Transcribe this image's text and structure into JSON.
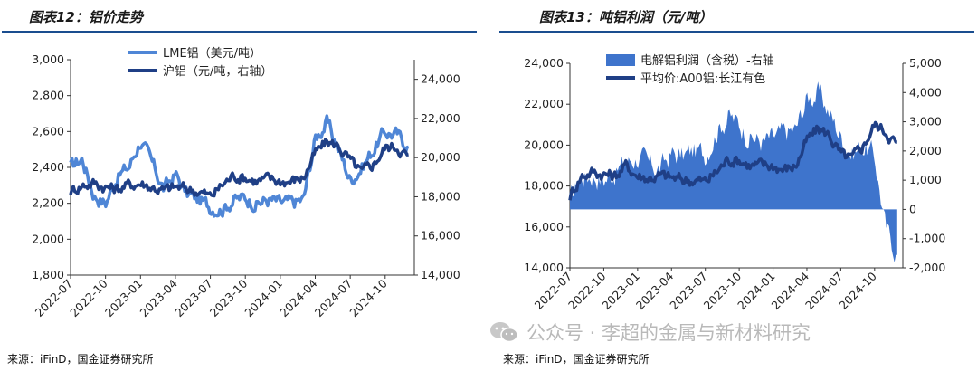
{
  "left_panel": {
    "title": "图表12：铝价走势",
    "source": "来源：iFinD，国金证券研究所"
  },
  "right_panel": {
    "title": "图表13：吨铝利润（元/吨）",
    "source": "来源：iFinD，国金证券研究所"
  },
  "watermark": {
    "text": "公众号 · 李超的金属与新材料研究",
    "logo_icon": "wechat-logo-icon"
  },
  "colors": {
    "light_blue": "#4f86d6",
    "dark_blue": "#1f3f86",
    "area_blue": "#3e74cc",
    "rule": "#1a4d8f"
  },
  "chart_data": [
    {
      "type": "line",
      "title": "铝价走势",
      "x_tick_labels": [
        "2022-07",
        "2022-10",
        "2023-01",
        "2023-04",
        "2023-07",
        "2023-10",
        "2024-01",
        "2024-04",
        "2024-07",
        "2024-10"
      ],
      "x_range": [
        "2022-07",
        "2024-12"
      ],
      "left_axis": {
        "range": [
          1800,
          3000
        ],
        "ticks": [
          1800,
          2000,
          2200,
          2400,
          2600,
          2800,
          3000
        ],
        "tick_labels": [
          "1,800",
          "2,000",
          "2,200",
          "2,400",
          "2,600",
          "2,800",
          "3,000"
        ]
      },
      "right_axis": {
        "range": [
          14000,
          25000
        ],
        "ticks": [
          14000,
          16000,
          18000,
          20000,
          22000,
          24000
        ],
        "tick_labels": [
          "14,000",
          "16,000",
          "18,000",
          "20,000",
          "22,000",
          "24,000"
        ]
      },
      "legend_position": "top-center",
      "series": [
        {
          "name": "LME铝（美元/吨）",
          "axis": "left",
          "points": [
            [
              "2022-07",
              2400
            ],
            [
              "2022-08",
              2450
            ],
            [
              "2022-09",
              2250
            ],
            [
              "2022-10",
              2200
            ],
            [
              "2022-11",
              2350
            ],
            [
              "2022-12",
              2400
            ],
            [
              "2023-01",
              2550
            ],
            [
              "2023-02",
              2420
            ],
            [
              "2023-03",
              2280
            ],
            [
              "2023-04",
              2360
            ],
            [
              "2023-05",
              2250
            ],
            [
              "2023-06",
              2220
            ],
            [
              "2023-07",
              2180
            ],
            [
              "2023-08",
              2170
            ],
            [
              "2023-09",
              2220
            ],
            [
              "2023-10",
              2230
            ],
            [
              "2023-11",
              2200
            ],
            [
              "2023-12",
              2220
            ],
            [
              "2024-01",
              2200
            ],
            [
              "2024-02",
              2200
            ],
            [
              "2024-03",
              2220
            ],
            [
              "2024-04",
              2560
            ],
            [
              "2024-05",
              2650
            ],
            [
              "2024-06",
              2500
            ],
            [
              "2024-07",
              2330
            ],
            [
              "2024-08",
              2400
            ],
            [
              "2024-09",
              2500
            ],
            [
              "2024-10",
              2600
            ],
            [
              "2024-11",
              2580
            ],
            [
              "2024-12",
              2520
            ]
          ]
        },
        {
          "name": "沪铝（元/吨，右轴）",
          "axis": "right",
          "points": [
            [
              "2022-07",
              18300
            ],
            [
              "2022-08",
              18600
            ],
            [
              "2022-09",
              18700
            ],
            [
              "2022-10",
              18500
            ],
            [
              "2022-11",
              18400
            ],
            [
              "2022-12",
              18600
            ],
            [
              "2023-01",
              18700
            ],
            [
              "2023-02",
              18500
            ],
            [
              "2023-03",
              18300
            ],
            [
              "2023-04",
              18500
            ],
            [
              "2023-05",
              18400
            ],
            [
              "2023-06",
              18300
            ],
            [
              "2023-07",
              18000
            ],
            [
              "2023-08",
              18600
            ],
            [
              "2023-09",
              19100
            ],
            [
              "2023-10",
              19000
            ],
            [
              "2023-11",
              18800
            ],
            [
              "2023-12",
              18900
            ],
            [
              "2024-01",
              18800
            ],
            [
              "2024-02",
              18800
            ],
            [
              "2024-03",
              19000
            ],
            [
              "2024-04",
              20200
            ],
            [
              "2024-05",
              20800
            ],
            [
              "2024-06",
              20600
            ],
            [
              "2024-07",
              19800
            ],
            [
              "2024-08",
              19200
            ],
            [
              "2024-09",
              19700
            ],
            [
              "2024-10",
              20500
            ],
            [
              "2024-11",
              20600
            ],
            [
              "2024-12",
              20000
            ]
          ]
        }
      ]
    },
    {
      "type": "area",
      "title": "吨铝利润（元/吨）",
      "x_tick_labels": [
        "2022-07",
        "2022-10",
        "2023-01",
        "2023-04",
        "2023-07",
        "2023-10",
        "2024-01",
        "2024-04",
        "2024-07",
        "2024-10"
      ],
      "x_range": [
        "2022-07",
        "2024-12"
      ],
      "left_axis": {
        "range": [
          14000,
          24000
        ],
        "ticks": [
          14000,
          16000,
          18000,
          20000,
          22000,
          24000
        ],
        "tick_labels": [
          "14,000",
          "16,000",
          "18,000",
          "20,000",
          "22,000",
          "24,000"
        ]
      },
      "right_axis": {
        "range": [
          -2000,
          5000
        ],
        "ticks": [
          -2000,
          -1000,
          0,
          1000,
          2000,
          3000,
          4000,
          5000
        ],
        "tick_labels": [
          "-2,000",
          "-1,000",
          "0",
          "1,000",
          "2,000",
          "3,000",
          "4,000",
          "5,000"
        ]
      },
      "legend_position": "top-center",
      "series": [
        {
          "name": "电解铝利润（含税）-右轴",
          "axis": "right",
          "kind": "area",
          "points": [
            [
              "2022-07",
              300
            ],
            [
              "2022-08",
              1100
            ],
            [
              "2022-09",
              1200
            ],
            [
              "2022-10",
              1000
            ],
            [
              "2022-11",
              1300
            ],
            [
              "2022-12",
              1600
            ],
            [
              "2023-01",
              1800
            ],
            [
              "2023-02",
              1500
            ],
            [
              "2023-03",
              1400
            ],
            [
              "2023-04",
              1900
            ],
            [
              "2023-05",
              1800
            ],
            [
              "2023-06",
              2000
            ],
            [
              "2023-07",
              1900
            ],
            [
              "2023-08",
              2700
            ],
            [
              "2023-09",
              3200
            ],
            [
              "2023-10",
              2900
            ],
            [
              "2023-11",
              2500
            ],
            [
              "2023-12",
              2300
            ],
            [
              "2024-01",
              2400
            ],
            [
              "2024-02",
              2600
            ],
            [
              "2024-03",
              2700
            ],
            [
              "2024-04",
              3800
            ],
            [
              "2024-05",
              4000
            ],
            [
              "2024-06",
              3300
            ],
            [
              "2024-07",
              2500
            ],
            [
              "2024-08",
              1900
            ],
            [
              "2024-09",
              2200
            ],
            [
              "2024-10",
              1800
            ],
            [
              "2024-11",
              -700
            ],
            [
              "2024-12",
              -1500
            ]
          ]
        },
        {
          "name": "平均价:A00铝:长江有色",
          "axis": "left",
          "kind": "line",
          "points": [
            [
              "2022-07",
              17500
            ],
            [
              "2022-08",
              18500
            ],
            [
              "2022-09",
              18700
            ],
            [
              "2022-10",
              18600
            ],
            [
              "2022-11",
              18500
            ],
            [
              "2022-12",
              19000
            ],
            [
              "2023-01",
              18500
            ],
            [
              "2023-02",
              18400
            ],
            [
              "2023-03",
              18500
            ],
            [
              "2023-04",
              18400
            ],
            [
              "2023-05",
              18300
            ],
            [
              "2023-06",
              18300
            ],
            [
              "2023-07",
              18200
            ],
            [
              "2023-08",
              18700
            ],
            [
              "2023-09",
              19300
            ],
            [
              "2023-10",
              19300
            ],
            [
              "2023-11",
              19000
            ],
            [
              "2023-12",
              19000
            ],
            [
              "2024-01",
              19000
            ],
            [
              "2024-02",
              18800
            ],
            [
              "2024-03",
              19000
            ],
            [
              "2024-04",
              20200
            ],
            [
              "2024-05",
              20800
            ],
            [
              "2024-06",
              20500
            ],
            [
              "2024-07",
              19500
            ],
            [
              "2024-08",
              19300
            ],
            [
              "2024-09",
              20000
            ],
            [
              "2024-10",
              21000
            ],
            [
              "2024-11",
              20700
            ],
            [
              "2024-12",
              20000
            ]
          ]
        }
      ]
    }
  ]
}
